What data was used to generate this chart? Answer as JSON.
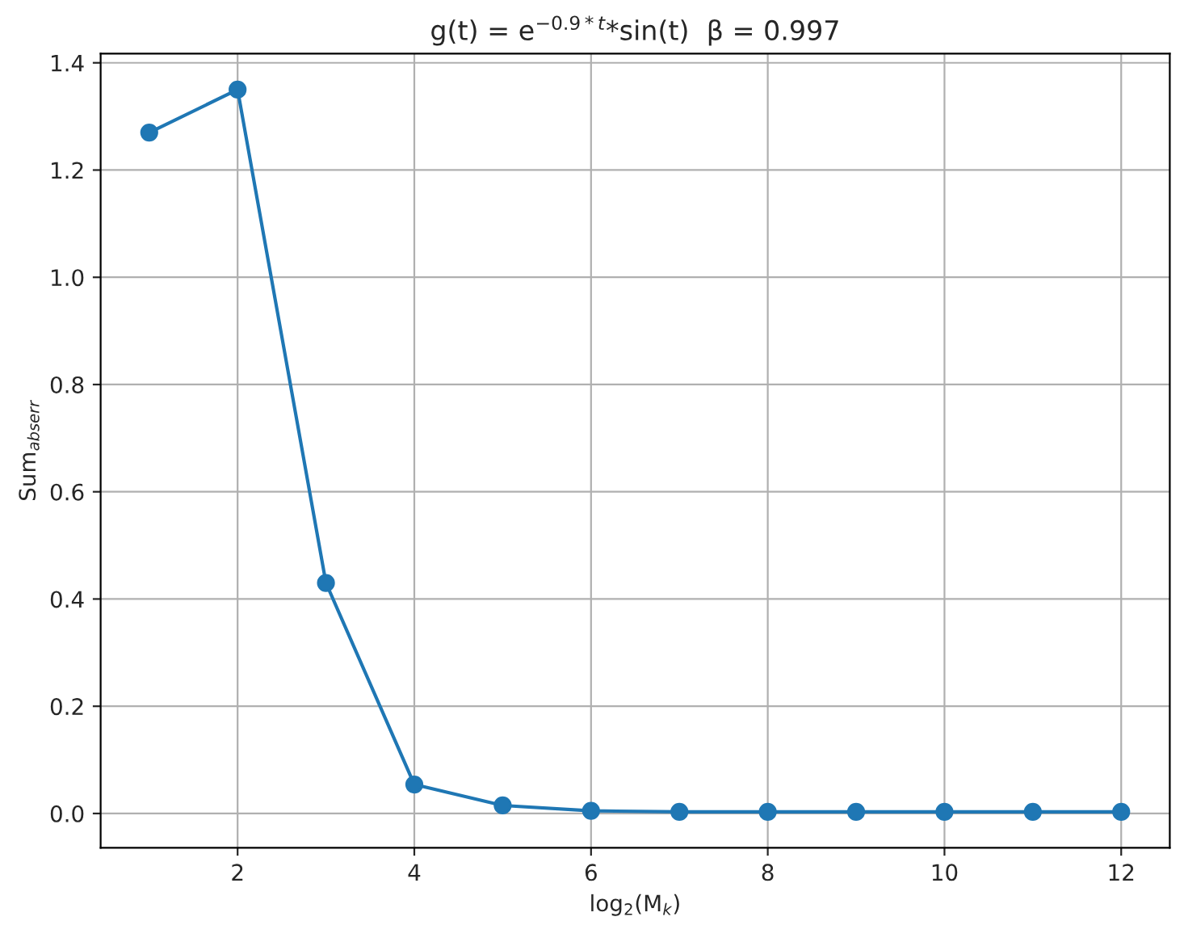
{
  "chart_data": {
    "type": "line",
    "title": "g(t) = e$^{−0.9*t}$*sin(t)  β = 0.997",
    "xlabel": "log$_{2}$(M$_{k}$)",
    "ylabel": "Sum$_{abserr}$",
    "x": [
      1,
      2,
      3,
      4,
      5,
      6,
      7,
      8,
      9,
      10,
      11,
      12
    ],
    "series": [
      {
        "color": "#1f77b4",
        "values": [
          1.27,
          1.35,
          0.43,
          0.054,
          0.015,
          0.005,
          0.003,
          0.003,
          0.003,
          0.003,
          0.003,
          0.003
        ]
      }
    ],
    "xlim": [
      0.45,
      12.55
    ],
    "ylim": [
      -0.064,
      1.417
    ],
    "xticks": [
      2,
      4,
      6,
      8,
      10,
      12
    ],
    "yticks": [
      {
        "value": 0,
        "label": "0.0"
      },
      0.2,
      0.4,
      0.6,
      0.8,
      {
        "value": 1,
        "label": "1.0"
      },
      1.2,
      1.4
    ],
    "grid": true,
    "marker": "circle",
    "line_style": "solid"
  }
}
